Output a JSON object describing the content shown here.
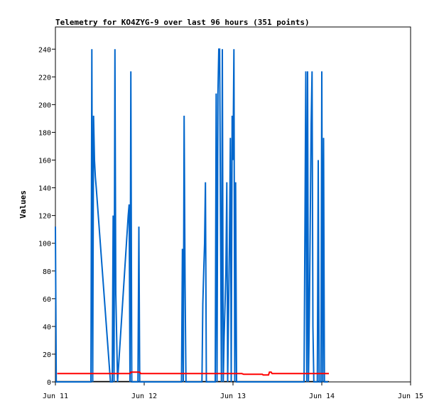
{
  "chart_data": {
    "type": "line",
    "title": "Telemetry for KO4ZYG-9 over last 96 hours (351 points)",
    "xlabel": "",
    "ylabel": "Values",
    "x_ticks": [
      "Jun 11",
      "Jun 12",
      "Jun 13",
      "Jun 14",
      "Jun 15"
    ],
    "x_range_days": [
      11,
      15
    ],
    "ylim": [
      0,
      256
    ],
    "y_ticks": [
      0,
      20,
      40,
      60,
      80,
      100,
      120,
      140,
      160,
      180,
      200,
      220,
      240
    ],
    "grid": false,
    "legend": "none",
    "series": [
      {
        "color": "#0066cc",
        "points": [
          [
            11.0,
            112
          ],
          [
            11.01,
            0
          ],
          [
            11.02,
            0
          ],
          [
            11.4,
            0
          ],
          [
            11.41,
            240
          ],
          [
            11.42,
            0
          ],
          [
            11.43,
            192
          ],
          [
            11.44,
            160
          ],
          [
            11.45,
            148
          ],
          [
            11.46,
            140
          ],
          [
            11.62,
            0
          ],
          [
            11.64,
            0
          ],
          [
            11.65,
            120
          ],
          [
            11.66,
            0
          ],
          [
            11.67,
            240
          ],
          [
            11.68,
            64
          ],
          [
            11.7,
            0
          ],
          [
            11.82,
            120
          ],
          [
            11.83,
            128
          ],
          [
            11.84,
            0
          ],
          [
            11.85,
            224
          ],
          [
            11.86,
            0
          ],
          [
            11.88,
            0
          ],
          [
            11.93,
            0
          ],
          [
            11.94,
            112
          ],
          [
            11.95,
            0
          ],
          [
            12.42,
            0
          ],
          [
            12.43,
            96
          ],
          [
            12.44,
            0
          ],
          [
            12.45,
            192
          ],
          [
            12.46,
            72
          ],
          [
            12.47,
            0
          ],
          [
            12.65,
            0
          ],
          [
            12.66,
            56
          ],
          [
            12.67,
            80
          ],
          [
            12.68,
            100
          ],
          [
            12.69,
            144
          ],
          [
            12.7,
            0
          ],
          [
            12.8,
            0
          ],
          [
            12.81,
            208
          ],
          [
            12.82,
            0
          ],
          [
            12.83,
            208
          ],
          [
            12.84,
            240
          ],
          [
            12.85,
            240
          ],
          [
            12.86,
            112
          ],
          [
            12.87,
            0
          ],
          [
            12.88,
            240
          ],
          [
            12.89,
            0
          ],
          [
            12.9,
            32
          ],
          [
            12.91,
            56
          ],
          [
            12.92,
            80
          ],
          [
            12.93,
            144
          ],
          [
            12.94,
            0
          ],
          [
            12.96,
            100
          ],
          [
            12.97,
            176
          ],
          [
            12.98,
            0
          ],
          [
            12.99,
            192
          ],
          [
            13.0,
            160
          ],
          [
            13.01,
            240
          ],
          [
            13.02,
            0
          ],
          [
            13.03,
            144
          ],
          [
            13.04,
            0
          ],
          [
            13.8,
            0
          ],
          [
            13.81,
            112
          ],
          [
            13.82,
            224
          ],
          [
            13.83,
            0
          ],
          [
            13.84,
            224
          ],
          [
            13.85,
            0
          ],
          [
            13.86,
            48
          ],
          [
            13.87,
            112
          ],
          [
            13.88,
            186
          ],
          [
            13.89,
            224
          ],
          [
            13.9,
            40
          ],
          [
            13.91,
            0
          ],
          [
            13.95,
            0
          ],
          [
            13.96,
            160
          ],
          [
            13.97,
            0
          ],
          [
            13.99,
            0
          ],
          [
            14.0,
            224
          ],
          [
            14.01,
            0
          ],
          [
            14.02,
            176
          ],
          [
            14.03,
            0
          ],
          [
            14.07,
            0
          ]
        ]
      },
      {
        "color": "#ff0000",
        "points": [
          [
            11.02,
            6
          ],
          [
            11.84,
            6
          ],
          [
            11.85,
            7
          ],
          [
            11.95,
            7
          ],
          [
            11.96,
            6
          ],
          [
            13.1,
            6
          ],
          [
            13.12,
            5.5
          ],
          [
            13.33,
            5.5
          ],
          [
            13.34,
            5
          ],
          [
            13.4,
            5
          ],
          [
            13.41,
            7
          ],
          [
            13.43,
            7
          ],
          [
            13.44,
            6
          ],
          [
            14.08,
            6
          ]
        ]
      }
    ]
  }
}
